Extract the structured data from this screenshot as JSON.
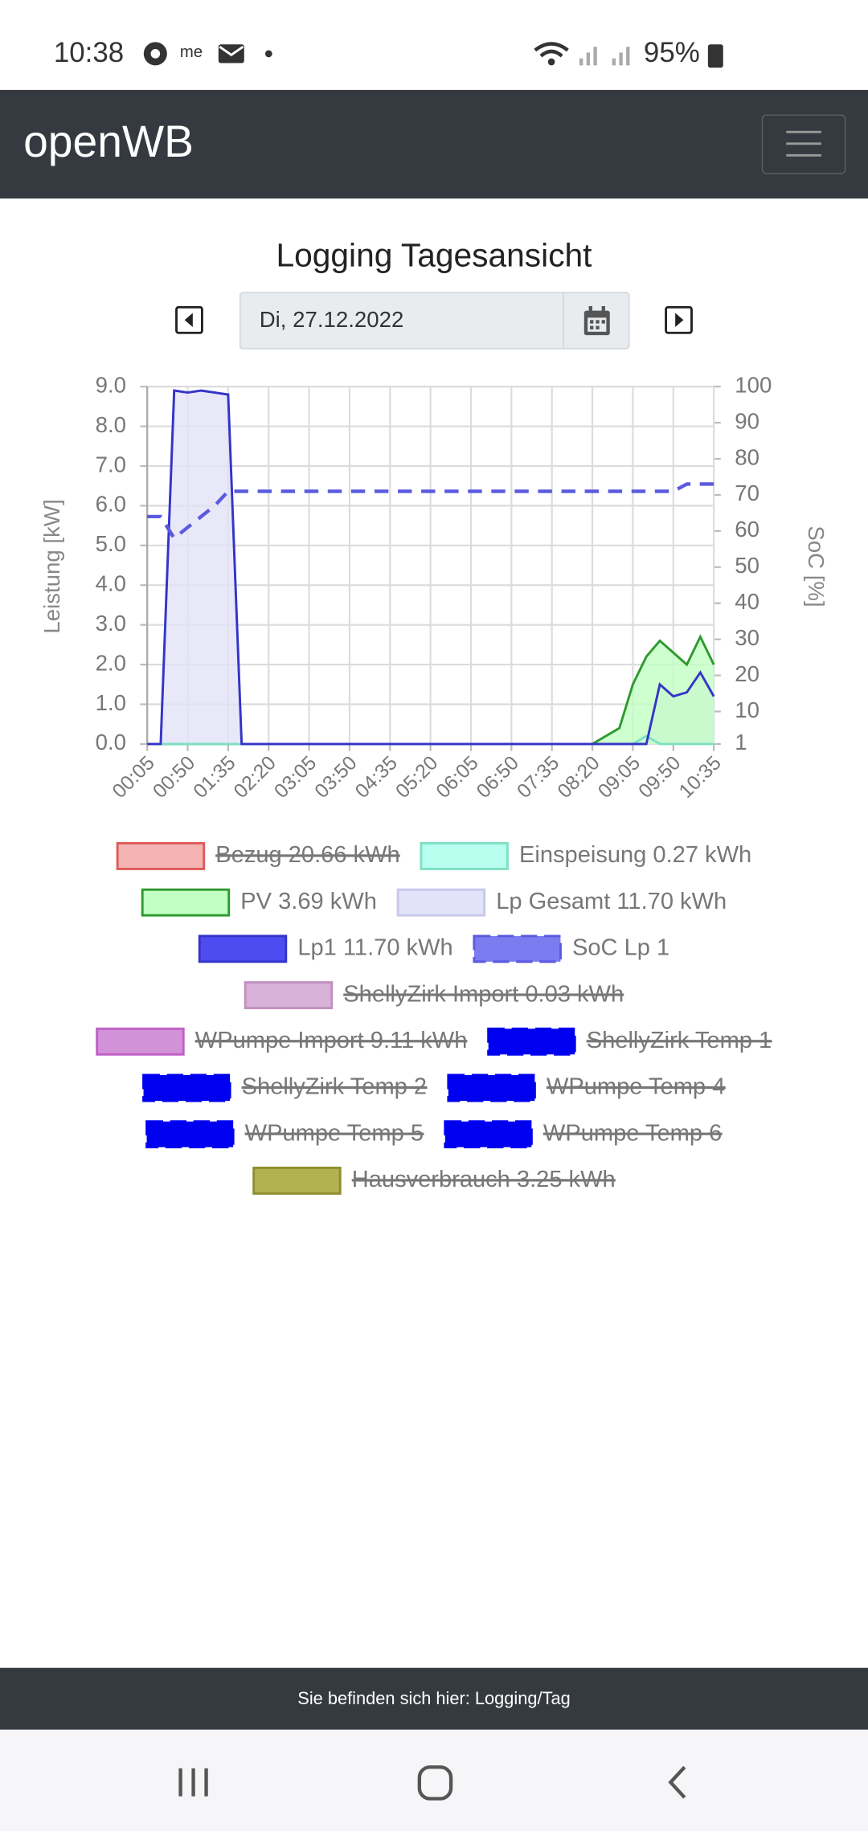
{
  "status_bar": {
    "time": "10:38",
    "battery": "95%"
  },
  "navbar": {
    "brand": "openWB"
  },
  "page": {
    "title": "Logging Tagesansicht",
    "date": "Di, 27.12.2022"
  },
  "chart_data": {
    "type": "line",
    "ylabel": "Leistung [kW]",
    "y2label": "SoC [%]",
    "categories": [
      "00:05",
      null,
      null,
      "00:50",
      null,
      null,
      "01:35",
      null,
      null,
      "02:20",
      null,
      null,
      "03:05",
      null,
      null,
      "03:50",
      null,
      null,
      "04:35",
      null,
      null,
      "05:20",
      null,
      null,
      "06:05",
      null,
      null,
      "06:50",
      null,
      null,
      "07:35",
      null,
      null,
      "08:20",
      null,
      null,
      "09:05",
      null,
      null,
      "09:50",
      null,
      null,
      "10:35"
    ],
    "ylim": [
      0,
      9
    ],
    "yticks": [
      {
        "value": 0,
        "label": "0.0"
      },
      {
        "value": 1,
        "label": "1.0"
      },
      {
        "value": 2,
        "label": "2.0"
      },
      {
        "value": 3,
        "label": "3.0"
      },
      {
        "value": 4,
        "label": "4.0"
      },
      {
        "value": 5,
        "label": "5.0"
      },
      {
        "value": 6,
        "label": "6.0"
      },
      {
        "value": 7,
        "label": "7.0"
      },
      {
        "value": 8,
        "label": "8.0"
      },
      {
        "value": 9,
        "label": "9.0"
      }
    ],
    "y2lim": [
      1,
      100
    ],
    "y2ticks": [
      1,
      10,
      20,
      30,
      40,
      50,
      60,
      70,
      80,
      90,
      100
    ],
    "grid": true,
    "series": [
      {
        "name": "Bezug 20.66 kWh",
        "color": "#f4b4b4",
        "border": "#e05a5a",
        "hidden": true
      },
      {
        "name": "Einspeisung 0.27 kWh",
        "color": "#b8fff0",
        "border": "#7fe0c4",
        "fill": false,
        "values": [
          0,
          0,
          0,
          0,
          0,
          0,
          0,
          0,
          0,
          0,
          0,
          0,
          0,
          0,
          0,
          0,
          0,
          0,
          0,
          0,
          0,
          0,
          0,
          0,
          0,
          0,
          0,
          0,
          0,
          0,
          0,
          0,
          0,
          0,
          0,
          0,
          0,
          0.2,
          0,
          0,
          0,
          0,
          0
        ]
      },
      {
        "name": "PV 3.69 kWh",
        "color": "#c2ffc2",
        "border": "#2e9a2e",
        "fill": true,
        "values": [
          0,
          0,
          0,
          0,
          0,
          0,
          0,
          0,
          0,
          0,
          0,
          0,
          0,
          0,
          0,
          0,
          0,
          0,
          0,
          0,
          0,
          0,
          0,
          0,
          0,
          0,
          0,
          0,
          0,
          0,
          0,
          0,
          0,
          0,
          0.2,
          0.4,
          1.5,
          2.2,
          2.6,
          2.3,
          2.0,
          2.7,
          2.0
        ]
      },
      {
        "name": "Lp Gesamt 11.70 kWh",
        "color": "#e2e2f8",
        "border": "#c8c8ee",
        "fill": true,
        "values": [
          0,
          0,
          8.9,
          8.85,
          8.9,
          8.85,
          8.8,
          0,
          0,
          0,
          0,
          0,
          0,
          0,
          0,
          0,
          0,
          0,
          0,
          0,
          0,
          0,
          0,
          0,
          0,
          0,
          0,
          0,
          0,
          0,
          0,
          0,
          0,
          0,
          0,
          0,
          0,
          0,
          1.5,
          1.2,
          1.3,
          1.8,
          1.2
        ]
      },
      {
        "name": "Lp1 11.70 kWh",
        "color": "#4c4cf0",
        "border": "#3434c8",
        "fill": false,
        "values": [
          0,
          0,
          8.9,
          8.85,
          8.9,
          8.85,
          8.8,
          0,
          0,
          0,
          0,
          0,
          0,
          0,
          0,
          0,
          0,
          0,
          0,
          0,
          0,
          0,
          0,
          0,
          0,
          0,
          0,
          0,
          0,
          0,
          0,
          0,
          0,
          0,
          0,
          0,
          0,
          0,
          1.5,
          1.2,
          1.3,
          1.8,
          1.2
        ]
      },
      {
        "name": "SoC Lp 1",
        "color": "#7c7cf0",
        "border": "#5a5ae0",
        "dashed": true,
        "axis": "y2",
        "values": [
          64,
          64,
          58,
          61,
          64,
          67,
          71,
          71,
          71,
          71,
          71,
          71,
          71,
          71,
          71,
          71,
          71,
          71,
          71,
          71,
          71,
          71,
          71,
          71,
          71,
          71,
          71,
          71,
          71,
          71,
          71,
          71,
          71,
          71,
          71,
          71,
          71,
          71,
          71,
          71,
          73,
          73,
          73
        ]
      },
      {
        "name": "ShellyZirk Import 0.03 kWh",
        "color": "#d8b2d8",
        "border": "#c090c0",
        "hidden": true
      },
      {
        "name": "WPumpe Import 9.11 kWh",
        "color": "#d292d8",
        "border": "#c060c8",
        "hidden": true
      },
      {
        "name": "ShellyZirk Temp 1",
        "color": "#0000f0",
        "border": "#0000f0",
        "dashed": true,
        "hidden": true
      },
      {
        "name": "ShellyZirk Temp 2",
        "color": "#0000f0",
        "border": "#0000f0",
        "dashed": true,
        "hidden": true
      },
      {
        "name": "WPumpe Temp 4",
        "color": "#0000f0",
        "border": "#0000f0",
        "dashed": true,
        "hidden": true
      },
      {
        "name": "WPumpe Temp 5",
        "color": "#0000f0",
        "border": "#0000f0",
        "dashed": true,
        "hidden": true
      },
      {
        "name": "WPumpe Temp 6",
        "color": "#0000f0",
        "border": "#0000f0",
        "dashed": true,
        "hidden": true
      },
      {
        "name": "Hausverbrauch 3.25 kWh",
        "color": "#b2b250",
        "border": "#8f8f30",
        "hidden": true
      }
    ]
  },
  "footer": {
    "text": "Sie befinden sich hier: Logging/Tag"
  }
}
